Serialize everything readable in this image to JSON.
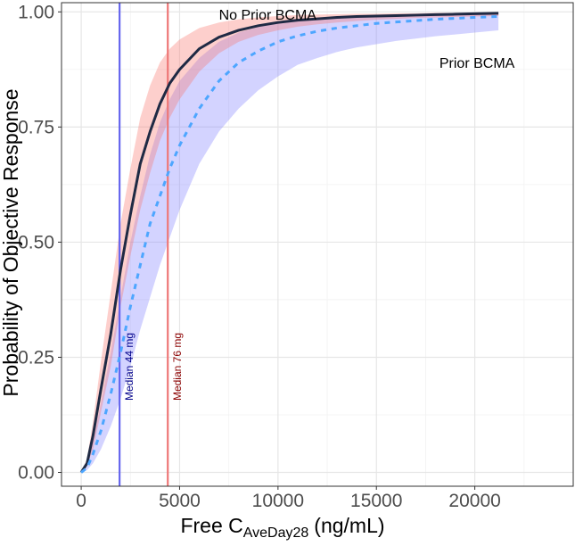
{
  "chart_data": {
    "type": "line",
    "xlabel_main": "Free C",
    "xlabel_sub": "AveDay28",
    "xlabel_unit": "(ng/mL)",
    "ylabel": "Probability of Objective Response",
    "xlim": [
      -1000,
      25000
    ],
    "ylim": [
      -0.03,
      1.02
    ],
    "x_ticks": [
      0,
      5000,
      10000,
      15000,
      20000
    ],
    "x_tick_labels": [
      "0",
      "5000",
      "10000",
      "15000",
      "20000"
    ],
    "y_ticks": [
      0,
      0.25,
      0.5,
      0.75,
      1.0
    ],
    "y_tick_labels": [
      "0.00",
      "0.25",
      "0.50",
      "0.75",
      "1.00"
    ],
    "grid": true,
    "x": [
      0,
      300,
      600,
      1000,
      1500,
      2000,
      2500,
      3000,
      3500,
      4000,
      4500,
      5000,
      6000,
      7000,
      8000,
      9000,
      10000,
      11000,
      12000,
      13000,
      14000,
      15000,
      16000,
      17000,
      18000,
      19000,
      20000,
      21200
    ],
    "series": [
      {
        "name": "No Prior BCMA",
        "color": "#1f2a44",
        "fill": "#f8766d",
        "values": [
          0.0,
          0.02,
          0.08,
          0.18,
          0.3,
          0.44,
          0.56,
          0.67,
          0.74,
          0.8,
          0.845,
          0.875,
          0.92,
          0.945,
          0.96,
          0.97,
          0.977,
          0.982,
          0.985,
          0.988,
          0.99,
          0.991,
          0.992,
          0.993,
          0.994,
          0.995,
          0.996,
          0.997
        ],
        "lower": [
          0.0,
          0.015,
          0.05,
          0.13,
          0.23,
          0.36,
          0.47,
          0.57,
          0.65,
          0.72,
          0.77,
          0.81,
          0.87,
          0.91,
          0.935,
          0.95,
          0.96,
          0.968,
          0.973,
          0.977,
          0.98,
          0.983,
          0.985,
          0.987,
          0.988,
          0.989,
          0.99,
          0.991
        ],
        "upper": [
          0.0,
          0.03,
          0.11,
          0.24,
          0.39,
          0.54,
          0.66,
          0.77,
          0.84,
          0.89,
          0.92,
          0.94,
          0.965,
          0.977,
          0.984,
          0.988,
          0.991,
          0.993,
          0.994,
          0.995,
          0.996,
          0.996,
          0.997,
          0.997,
          0.998,
          0.998,
          0.998,
          0.999
        ]
      },
      {
        "name": "Prior BCMA",
        "color": "#4da6ff",
        "fill": "#8080ff",
        "values": [
          0.0,
          0.01,
          0.04,
          0.09,
          0.17,
          0.26,
          0.36,
          0.45,
          0.54,
          0.6,
          0.66,
          0.71,
          0.79,
          0.85,
          0.89,
          0.915,
          0.935,
          0.948,
          0.958,
          0.965,
          0.97,
          0.975,
          0.978,
          0.981,
          0.984,
          0.986,
          0.988,
          0.99
        ],
        "lower": [
          0.0,
          0.005,
          0.02,
          0.05,
          0.1,
          0.16,
          0.23,
          0.31,
          0.38,
          0.45,
          0.51,
          0.57,
          0.67,
          0.74,
          0.79,
          0.83,
          0.86,
          0.885,
          0.9,
          0.913,
          0.923,
          0.93,
          0.937,
          0.942,
          0.947,
          0.951,
          0.955,
          0.96
        ],
        "upper": [
          0.0,
          0.02,
          0.07,
          0.15,
          0.26,
          0.38,
          0.5,
          0.6,
          0.69,
          0.76,
          0.81,
          0.85,
          0.9,
          0.935,
          0.955,
          0.967,
          0.975,
          0.981,
          0.985,
          0.988,
          0.99,
          0.992,
          0.993,
          0.994,
          0.995,
          0.996,
          0.996,
          0.997
        ]
      }
    ],
    "vlines": [
      {
        "x": 1950,
        "color": "#6666ee",
        "label": "Median 44 mg",
        "label_color": "#00008b"
      },
      {
        "x": 4400,
        "color": "#ee7777",
        "label": "Median 76 mg",
        "label_color": "#8b0000"
      }
    ],
    "annotations": [
      {
        "text": "No Prior BCMA",
        "x": 7000,
        "y": 0.995
      },
      {
        "text": "Prior BCMA",
        "x": 18200,
        "y": 0.89
      }
    ]
  }
}
